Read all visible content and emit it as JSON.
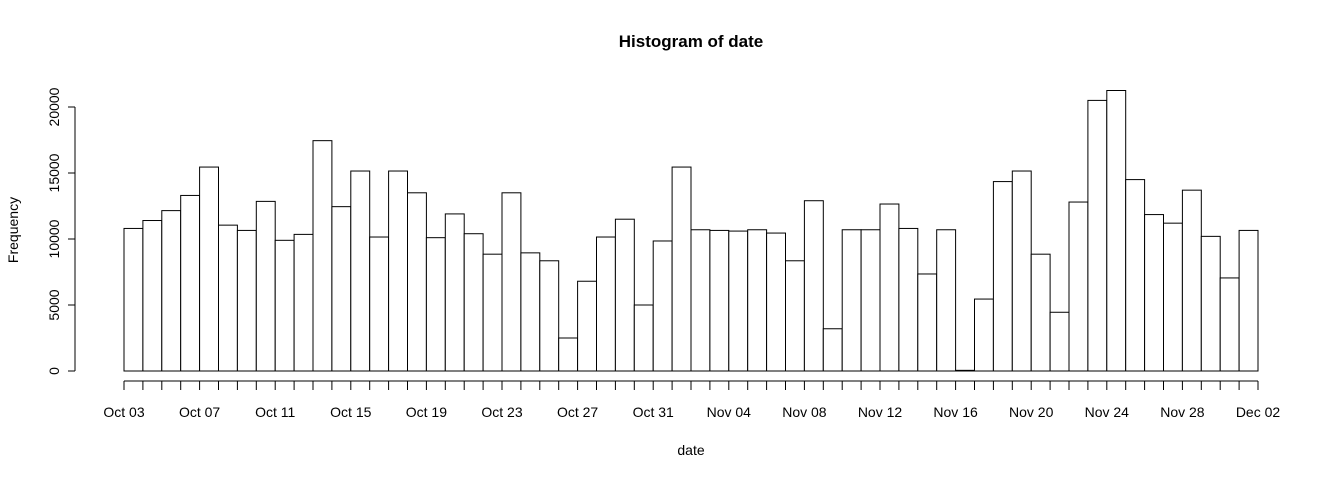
{
  "chart_data": {
    "type": "bar",
    "title": "Histogram of date",
    "xlabel": "date",
    "ylabel": "Frequency",
    "ylim": [
      0,
      20000
    ],
    "y_ticks": [
      0,
      5000,
      10000,
      15000,
      20000
    ],
    "x_tick_labels": [
      "Oct 03",
      "Oct 07",
      "Oct 11",
      "Oct 15",
      "Oct 19",
      "Oct 23",
      "Oct 27",
      "Oct 31",
      "Nov 04",
      "Nov 08",
      "Nov 12",
      "Nov 16",
      "Nov 20",
      "Nov 24",
      "Nov 28",
      "Dec 02"
    ],
    "bin_start": "Oct 03",
    "bin_end": "Dec 02",
    "values": [
      10800,
      11400,
      12150,
      13300,
      15450,
      11050,
      10650,
      12850,
      9900,
      10350,
      17450,
      12450,
      15150,
      10150,
      15150,
      13500,
      10100,
      11900,
      10400,
      8850,
      13500,
      8950,
      8350,
      2500,
      6800,
      10150,
      11500,
      5000,
      9850,
      15450,
      10700,
      10650,
      10600,
      10700,
      10450,
      8350,
      12900,
      3200,
      10700,
      10700,
      12650,
      10800,
      7350,
      10700,
      50,
      5450,
      14350,
      15150,
      8850,
      4450,
      12800,
      20500,
      21250,
      14500,
      11850,
      11200,
      13700,
      10200,
      7050,
      10650
    ]
  }
}
